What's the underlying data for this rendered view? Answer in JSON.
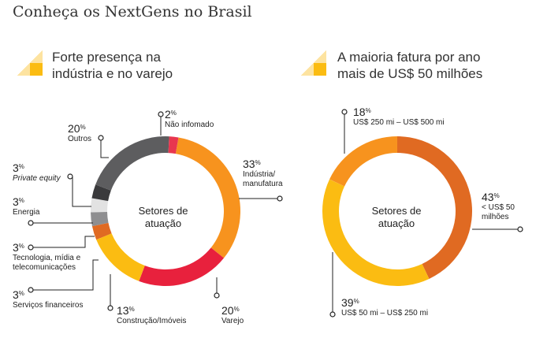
{
  "title": "Conheça os NextGens no Brasil",
  "colors": {
    "gray_dark": "#5d5d5f",
    "pink": "#e8364f",
    "orange": "#f7931e",
    "red": "#e8213d",
    "yellow": "#fbbc12",
    "burnt_orange": "#e06a22",
    "gray_mid": "#8e8e90",
    "gray_light": "#e2e2e2",
    "icon_yellow": "#fbbc12"
  },
  "panels": [
    {
      "title_line1": "Forte presença na",
      "title_line2": "indústria e no varejo",
      "icon": "triangle-graphic-icon"
    },
    {
      "title_line1": "A maioria fatura por ano",
      "title_line2": "mais de US$ 50 milhões",
      "icon": "triangle-graphic-icon"
    }
  ],
  "chart_data": [
    {
      "type": "pie",
      "center_line1": "Setores de",
      "center_line2": "atuação",
      "slices": [
        {
          "label": "Indústria/ manufatura",
          "name1": "Indústria/",
          "name2": "manufatura",
          "pct": "33",
          "value": 33,
          "color": "#f7931e"
        },
        {
          "label": "Varejo",
          "name1": "Varejo",
          "pct": "20",
          "value": 20,
          "color": "#e8213d"
        },
        {
          "label": "Construção/Imóveis",
          "name1": "Construção/Imóveis",
          "pct": "13",
          "value": 13,
          "color": "#fbbc12"
        },
        {
          "label": "Serviços financeiros",
          "name1": "Serviços financeiros",
          "pct": "3",
          "value": 3,
          "color": "#e06a22"
        },
        {
          "label": "Tecnologia, mídia e telecomunicações",
          "name1": "Tecnologia, mídia e",
          "name2": "telecomunicações",
          "pct": "3",
          "value": 3,
          "color": "#8e8e90"
        },
        {
          "label": "Energia",
          "name1": "Energia",
          "pct": "3",
          "value": 3,
          "color": "#e2e2e2"
        },
        {
          "label": "Private equity",
          "name1": "Private equity",
          "pct": "3",
          "value": 3,
          "color": "#3a3a3c",
          "italic": true
        },
        {
          "label": "Outros",
          "name1": "Outros",
          "pct": "20",
          "value": 20,
          "color": "#5d5d5f"
        },
        {
          "label": "Não infomado",
          "name1": "Não infomado",
          "pct": "2",
          "value": 2,
          "color": "#e8364f"
        }
      ]
    },
    {
      "type": "pie",
      "center_line1": "Setores de",
      "center_line2": "atuação",
      "slices": [
        {
          "label": "< US$ 50 milhões",
          "name1": "< US$ 50",
          "name2": "milhões",
          "pct": "43",
          "value": 43,
          "color": "#e06a22"
        },
        {
          "label": "US$ 50 mi – US$ 250 mi",
          "name1": "US$ 50 mi – US$ 250 mi",
          "pct": "39",
          "value": 39,
          "color": "#fbbc12"
        },
        {
          "label": "US$ 250 mi – US$ 500 mi",
          "name1": "US$ 250 mi – US$ 500 mi",
          "pct": "18",
          "value": 18,
          "color": "#f7931e"
        }
      ]
    }
  ]
}
